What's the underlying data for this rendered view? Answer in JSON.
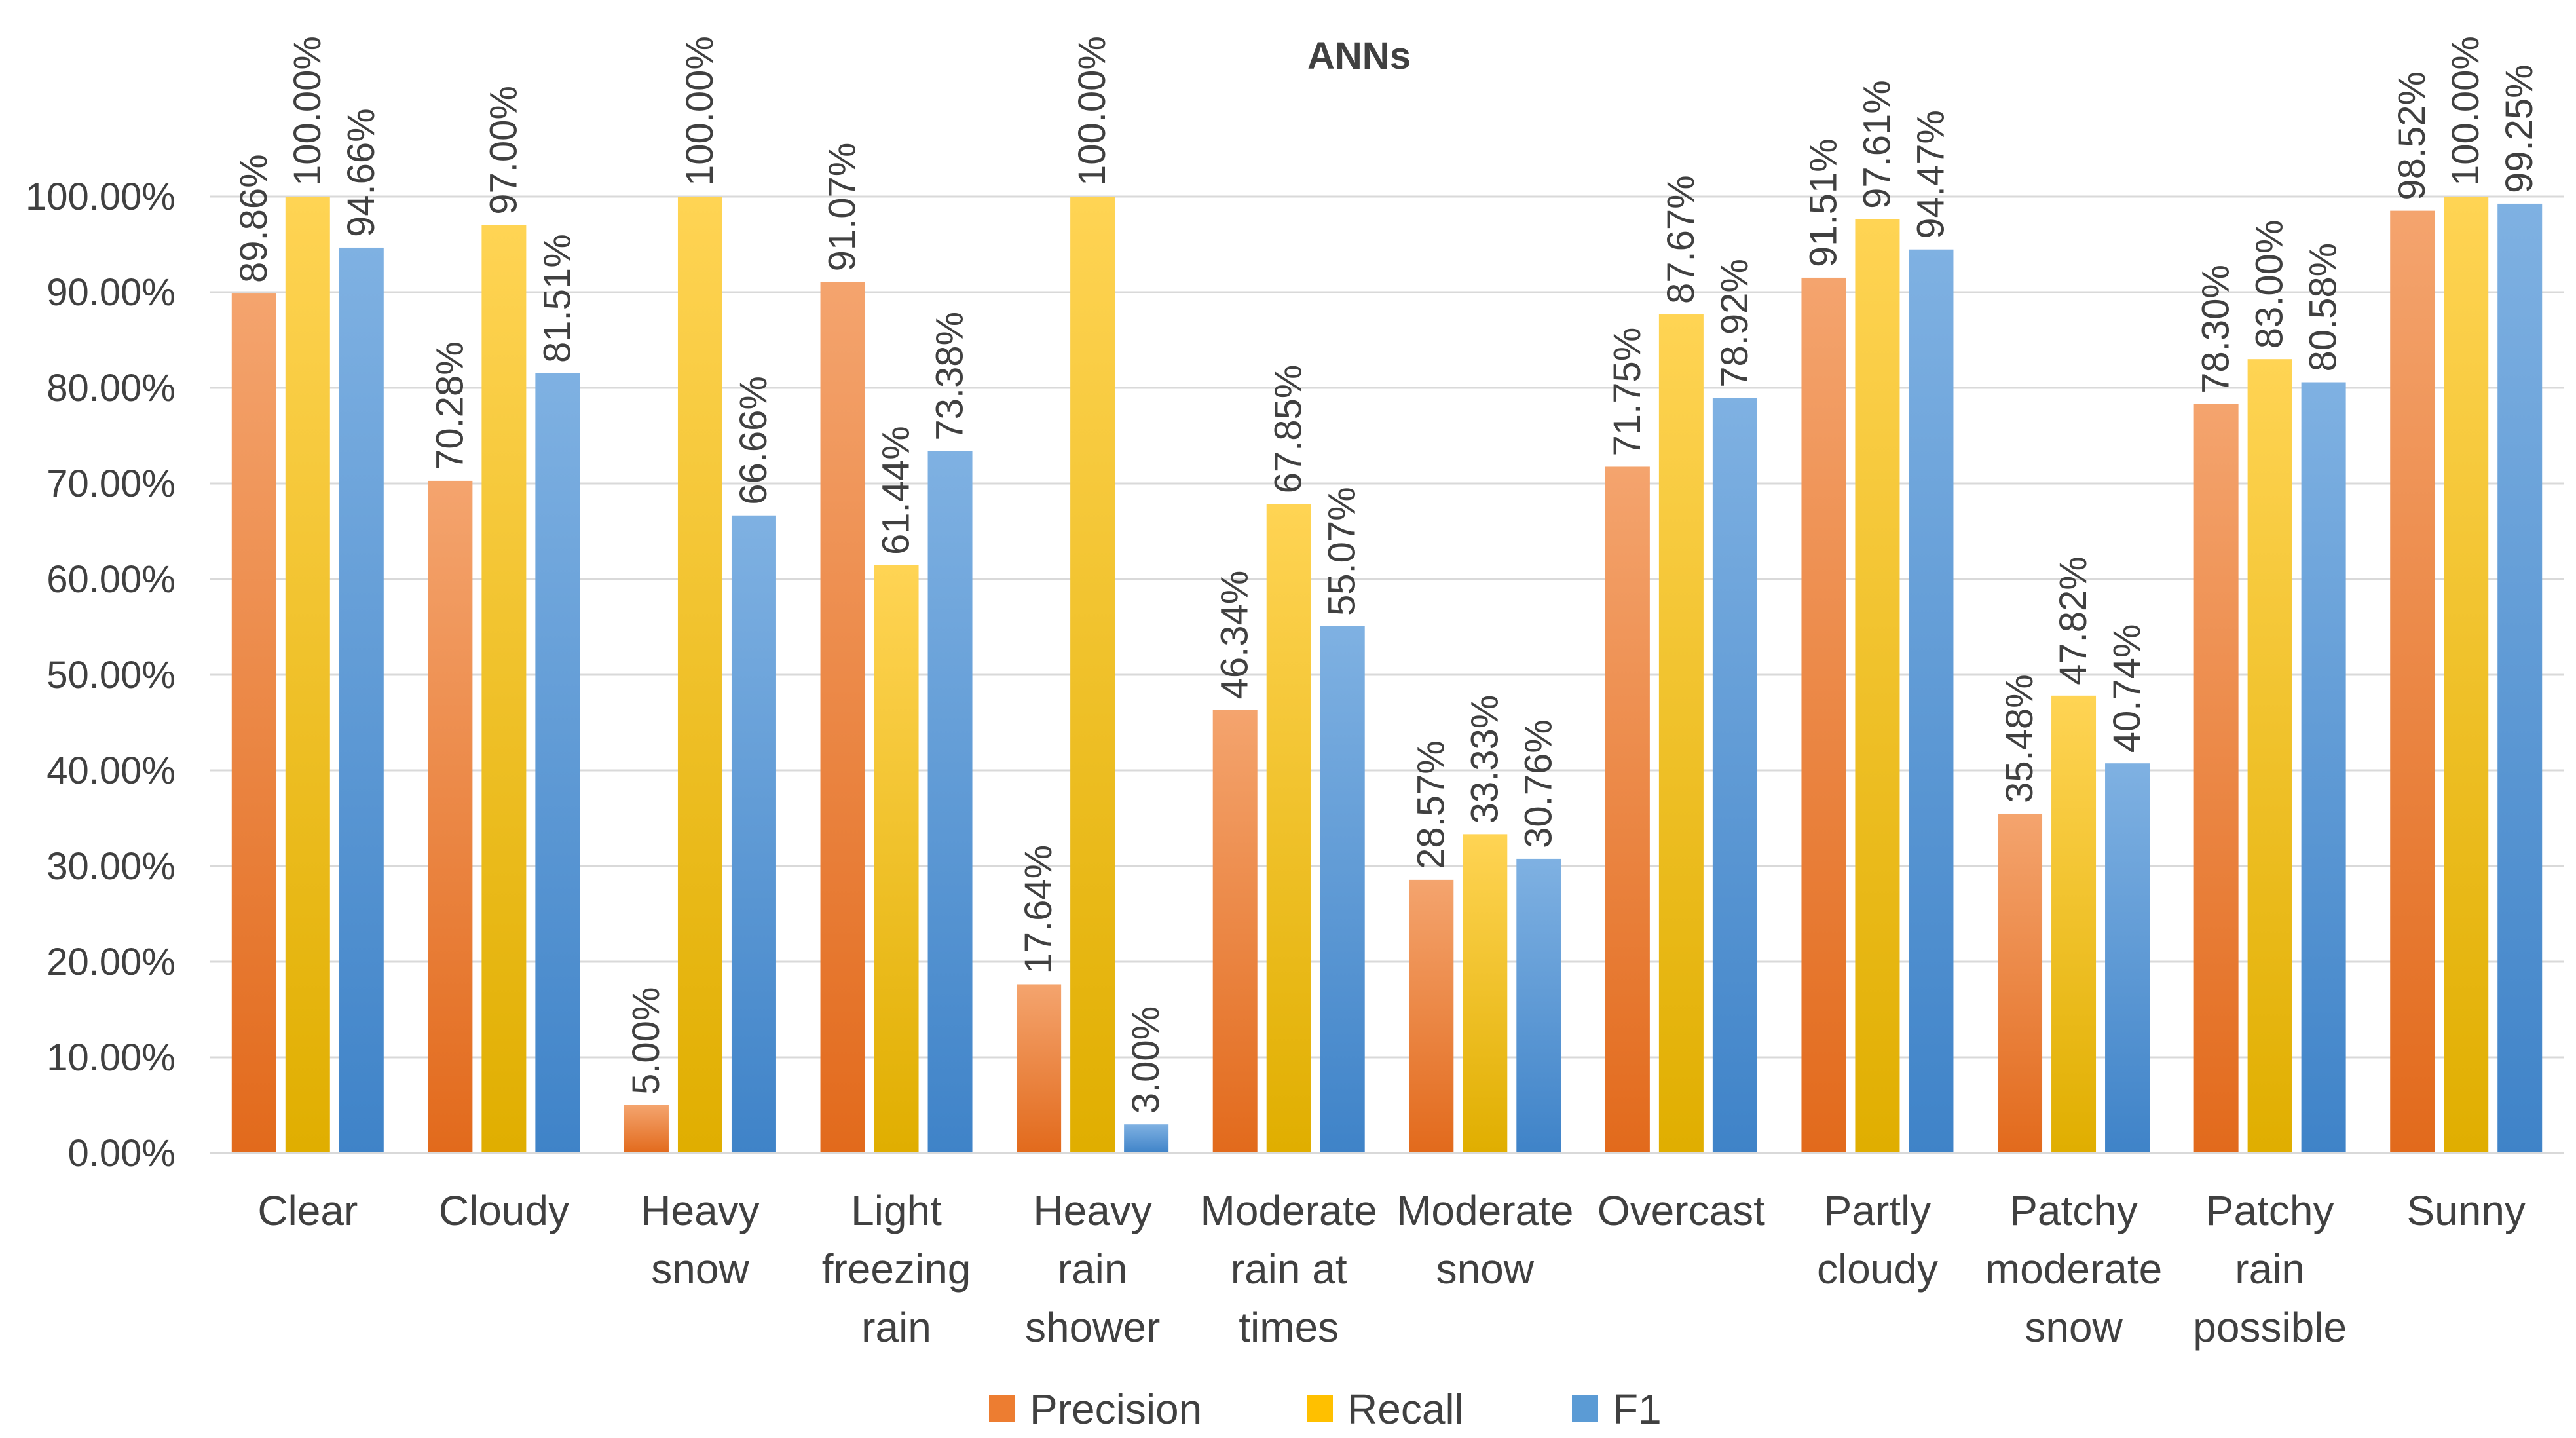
{
  "chart_data": {
    "type": "bar",
    "title": "ANNs",
    "xlabel": "",
    "ylabel": "",
    "ylim": [
      0,
      100
    ],
    "ytick_step": 10,
    "ytick_labels": [
      "0.00%",
      "10.00%",
      "20.00%",
      "30.00%",
      "40.00%",
      "50.00%",
      "60.00%",
      "70.00%",
      "80.00%",
      "90.00%",
      "100.00%"
    ],
    "grid": true,
    "legend_position": "bottom",
    "categories": [
      [
        "Clear"
      ],
      [
        "Cloudy"
      ],
      [
        "Heavy",
        "snow"
      ],
      [
        "Light",
        "freezing",
        "rain"
      ],
      [
        "Heavy",
        "rain",
        "shower"
      ],
      [
        "Moderate",
        "rain at",
        "times"
      ],
      [
        "Moderate",
        "snow"
      ],
      [
        "Overcast"
      ],
      [
        "Partly",
        "cloudy"
      ],
      [
        "Patchy",
        "moderate",
        "snow"
      ],
      [
        "Patchy",
        "rain",
        "possible"
      ],
      [
        "Sunny"
      ]
    ],
    "series": [
      {
        "name": "Precision",
        "color": "#ED7D31",
        "color_light": "#F4A46E",
        "color_dark": "#E26A1C",
        "values": [
          89.86,
          70.28,
          5.0,
          91.07,
          17.64,
          46.34,
          28.57,
          71.75,
          91.51,
          35.48,
          78.3,
          98.52
        ],
        "labels": [
          "89.86%",
          "70.28%",
          "5.00%",
          "91.07%",
          "17.64%",
          "46.34%",
          "28.57%",
          "71.75%",
          "91.51%",
          "35.48%",
          "78.30%",
          "98.52%"
        ]
      },
      {
        "name": "Recall",
        "color": "#FFC000",
        "color_light": "#FFD454",
        "color_dark": "#E0AE00",
        "values": [
          100.0,
          97.0,
          100.0,
          61.44,
          100.0,
          67.85,
          33.33,
          87.67,
          97.61,
          47.82,
          83.0,
          100.0
        ],
        "labels": [
          "100.00%",
          "97.00%",
          "100.00%",
          "61.44%",
          "100.00%",
          "67.85%",
          "33.33%",
          "87.67%",
          "97.61%",
          "47.82%",
          "83.00%",
          "100.00%"
        ]
      },
      {
        "name": "F1",
        "color": "#5B9BD5",
        "color_light": "#7FB1E2",
        "color_dark": "#3F83C8",
        "values": [
          94.66,
          81.51,
          66.66,
          73.38,
          3.0,
          55.07,
          30.76,
          78.92,
          94.47,
          40.74,
          80.58,
          99.25
        ],
        "labels": [
          "94.66%",
          "81.51%",
          "66.66%",
          "73.38%",
          "3.00%",
          "55.07%",
          "30.76%",
          "78.92%",
          "94.47%",
          "40.74%",
          "80.58%",
          "99.25%"
        ]
      }
    ]
  }
}
